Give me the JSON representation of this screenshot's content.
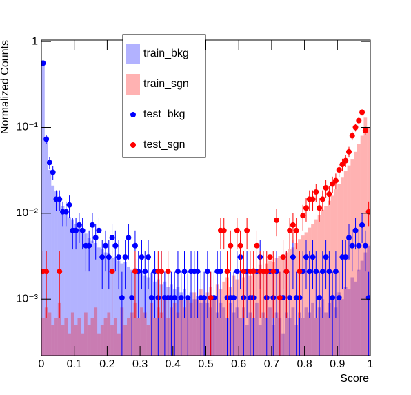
{
  "chart_data": {
    "type": "histogram",
    "xlabel": "Score",
    "ylabel": "Normalized Counts",
    "log_y": true,
    "grid": false,
    "legend_position": "top-left",
    "xlim": [
      0,
      1
    ],
    "ylim": [
      0.00022,
      1.04
    ],
    "xticks": [
      0,
      0.1,
      0.2,
      0.3,
      0.4,
      0.5,
      0.6,
      0.7,
      0.8,
      0.9,
      1
    ],
    "yticks": [
      {
        "value": 0.001,
        "label": "10⁻³"
      },
      {
        "value": 0.01,
        "label": "10⁻²"
      },
      {
        "value": 0.1,
        "label": "10⁻¹"
      },
      1
    ],
    "bins": [
      0,
      0.01,
      0.02,
      0.03,
      0.04,
      0.05,
      0.06,
      0.07,
      0.08,
      0.09,
      0.1,
      0.11,
      0.12,
      0.13,
      0.14,
      0.15,
      0.16,
      0.17,
      0.18,
      0.19,
      0.2,
      0.21,
      0.22,
      0.23,
      0.24,
      0.25,
      0.26,
      0.27,
      0.28,
      0.29,
      0.3,
      0.31,
      0.32,
      0.33,
      0.34,
      0.35,
      0.36,
      0.37,
      0.38,
      0.39,
      0.4,
      0.41,
      0.42,
      0.43,
      0.44,
      0.45,
      0.46,
      0.47,
      0.48,
      0.49,
      0.5,
      0.51,
      0.52,
      0.53,
      0.54,
      0.55,
      0.56,
      0.57,
      0.58,
      0.59,
      0.6,
      0.61,
      0.62,
      0.63,
      0.64,
      0.65,
      0.66,
      0.67,
      0.68,
      0.69,
      0.7,
      0.71,
      0.72,
      0.73,
      0.74,
      0.75,
      0.76,
      0.77,
      0.78,
      0.79,
      0.8,
      0.81,
      0.82,
      0.83,
      0.84,
      0.85,
      0.86,
      0.87,
      0.88,
      0.89,
      0.9,
      0.91,
      0.92,
      0.93,
      0.94,
      0.95,
      0.96,
      0.97,
      0.98,
      0.99,
      1
    ],
    "series": [
      {
        "name": "train_bkg",
        "style": "filled",
        "color": "#0000ff",
        "opacity": 0.3,
        "values": [
          0.6,
          0.07,
          0.032,
          0.021,
          0.018,
          0.014,
          0.012,
          0.01,
          0.009,
          0.0085,
          0.0075,
          0.007,
          0.0062,
          0.0058,
          0.0052,
          0.0048,
          0.0045,
          0.004,
          0.0038,
          0.0035,
          0.0034,
          0.003,
          0.0031,
          0.0028,
          0.0026,
          0.0027,
          0.0024,
          0.0022,
          0.0023,
          0.002,
          0.0021,
          0.0019,
          0.0018,
          0.002,
          0.0016,
          0.0017,
          0.0015,
          0.0016,
          0.0014,
          0.0015,
          0.0013,
          0.0014,
          0.0012,
          0.0013,
          0.0011,
          0.0012,
          0.001,
          0.0011,
          0.0009,
          0.001,
          0.0009,
          0.0008,
          0.001,
          0.0007,
          0.0009,
          0.0008,
          0.0006,
          0.0009,
          0.0007,
          0.0008,
          0.0006,
          0.0008,
          0.0005,
          0.0007,
          0.0006,
          0.0009,
          0.0005,
          0.0007,
          0.0006,
          0.0008,
          0.0005,
          0.0007,
          0.0006,
          0.0004,
          0.0007,
          0.0006,
          0.0008,
          0.0005,
          0.0007,
          0.0006,
          0.0008,
          0.0007,
          0.0009,
          0.0006,
          0.0008,
          0.001,
          0.0007,
          0.0009,
          0.0011,
          0.0008,
          0.0012,
          0.001,
          0.0014,
          0.0013,
          0.0018,
          0.0016,
          0.0022,
          0.0028,
          0.0035,
          0.0042
        ]
      },
      {
        "name": "train_sgn",
        "style": "filled",
        "color": "#ff0000",
        "opacity": 0.3,
        "values": [
          0.0006,
          0.0008,
          0.0007,
          0.0005,
          0.0006,
          0.0009,
          0.0005,
          0.0006,
          0.0004,
          0.0007,
          0.0005,
          0.0006,
          0.0004,
          0.0007,
          0.0005,
          0.0006,
          0.0008,
          0.0004,
          0.0005,
          0.0006,
          0.0007,
          0.0005,
          0.0006,
          0.0004,
          0.0008,
          0.0005,
          0.0006,
          0.0007,
          0.0009,
          0.0006,
          0.0008,
          0.0007,
          0.0005,
          0.0009,
          0.0006,
          0.0008,
          0.0007,
          0.001,
          0.0006,
          0.0008,
          0.0009,
          0.0007,
          0.001,
          0.0008,
          0.0011,
          0.0009,
          0.0012,
          0.001,
          0.0013,
          0.0011,
          0.0012,
          0.0014,
          0.0011,
          0.0015,
          0.0013,
          0.0016,
          0.0018,
          0.0014,
          0.0019,
          0.0017,
          0.002,
          0.0018,
          0.0021,
          0.0019,
          0.0023,
          0.0021,
          0.0025,
          0.0022,
          0.0026,
          0.0028,
          0.0027,
          0.003,
          0.0032,
          0.0029,
          0.0035,
          0.0038,
          0.004,
          0.0045,
          0.005,
          0.0055,
          0.006,
          0.0068,
          0.0075,
          0.0085,
          0.0095,
          0.011,
          0.012,
          0.014,
          0.016,
          0.019,
          0.022,
          0.026,
          0.031,
          0.036,
          0.043,
          0.052,
          0.064,
          0.08,
          0.13,
          0.1
        ]
      },
      {
        "name": "test_bkg",
        "style": "points",
        "color": "#0000ff",
        "values": [
          0.56,
          0.073,
          0.039,
          0.03,
          0.0146,
          0.0146,
          0.0104,
          0.0104,
          0.0125,
          0.0063,
          0.0063,
          0.0073,
          0.0063,
          0.0042,
          0.0042,
          0.0073,
          0.0052,
          0.0063,
          0.0031,
          0.0042,
          0.0031,
          0.0052,
          0.0042,
          0.0031,
          0.00104,
          0.0031,
          0.0052,
          0.00104,
          0.0042,
          0.0021,
          0.0031,
          0.0021,
          0.0031,
          0.00104,
          0.0021,
          0.00104,
          0.0021,
          0.00104,
          0.00104,
          0.00104,
          0.00104,
          0.0021,
          0.00104,
          0.0021,
          0.00104,
          0.0021,
          0.0021,
          0.0021,
          0.00104,
          0.00104,
          0.0021,
          0.00104,
          0.00104,
          0.0021,
          0.0021,
          null,
          0.00104,
          0.00104,
          0.00104,
          0.0021,
          0.0031,
          0.00104,
          0.0021,
          0.00104,
          0.00104,
          0.0021,
          0.0031,
          0.0021,
          0.00104,
          0.0021,
          0.00104,
          0.0021,
          0.00104,
          0.00104,
          0.0021,
          0.00104,
          0.0031,
          0.00104,
          0.00104,
          0.0021,
          0.0031,
          0.0021,
          0.0031,
          0.0021,
          0.00104,
          0.0021,
          0.0031,
          0.0021,
          0.00104,
          0.0021,
          0.00104,
          0.0031,
          0.0031,
          0.0052,
          0.0042,
          0.0063,
          0.0042,
          0.0073,
          0.0042,
          0.00104
        ],
        "errors": [
          0.024,
          0.0087,
          0.0064,
          0.0056,
          0.0039,
          0.0039,
          0.0033,
          0.0033,
          0.0036,
          0.0025,
          0.0025,
          0.0028,
          0.0025,
          0.0021,
          0.0021,
          0.0028,
          0.0023,
          0.0025,
          0.0018,
          0.0021,
          0.0018,
          0.0023,
          0.0021,
          0.0018,
          0.00104,
          0.0018,
          0.0023,
          0.00104,
          0.0021,
          0.0015,
          0.0018,
          0.0015,
          0.0018,
          0.00104,
          0.0015,
          0.00104,
          0.0015,
          0.00104,
          0.00104,
          0.00104,
          0.00104,
          0.0015,
          0.00104,
          0.0015,
          0.00104,
          0.0015,
          0.0015,
          0.0015,
          0.00104,
          0.00104,
          0.0015,
          0.00104,
          0.00104,
          0.0015,
          0.0015,
          null,
          0.00104,
          0.00104,
          0.00104,
          0.0015,
          0.0018,
          0.00104,
          0.0015,
          0.00104,
          0.00104,
          0.0015,
          0.0018,
          0.0015,
          0.00104,
          0.0015,
          0.00104,
          0.0015,
          0.00104,
          0.00104,
          0.0015,
          0.00104,
          0.0018,
          0.00104,
          0.00104,
          0.0015,
          0.0018,
          0.0015,
          0.0018,
          0.0015,
          0.00104,
          0.0015,
          0.0018,
          0.0015,
          0.00104,
          0.0015,
          0.00104,
          0.0018,
          0.0018,
          0.0023,
          0.0021,
          0.0025,
          0.0021,
          0.0028,
          0.0021,
          0.00104
        ]
      },
      {
        "name": "test_sgn",
        "style": "points",
        "color": "#ff0000",
        "values": [
          0.0021,
          0.0021,
          null,
          null,
          null,
          0.0021,
          null,
          null,
          null,
          null,
          null,
          null,
          null,
          null,
          null,
          null,
          null,
          null,
          null,
          null,
          null,
          0.0021,
          null,
          null,
          null,
          null,
          null,
          null,
          0.0021,
          null,
          null,
          null,
          null,
          null,
          null,
          0.0021,
          0.0021,
          null,
          0.0021,
          null,
          null,
          null,
          null,
          null,
          null,
          null,
          null,
          null,
          null,
          null,
          null,
          0.00104,
          null,
          null,
          0.0063,
          0.0063,
          0.0021,
          0.0042,
          null,
          0.0063,
          0.0042,
          0.0021,
          0.0063,
          0.0021,
          0.0021,
          0.0042,
          0.0021,
          0.0021,
          0.0021,
          0.0031,
          0.0021,
          0.0083,
          0.00104,
          0.0031,
          0.0021,
          0.0063,
          0.0073,
          0.0063,
          0.0021,
          0.0094,
          0.0115,
          0.0146,
          0.0146,
          0.0177,
          0.0115,
          0.0146,
          0.0198,
          0.0167,
          0.0219,
          0.024,
          0.032,
          0.037,
          0.041,
          0.052,
          0.08,
          0.1,
          0.12,
          0.15,
          0.092,
          0.0104
        ],
        "errors": [
          0.0015,
          0.0015,
          null,
          null,
          null,
          0.0015,
          null,
          null,
          null,
          null,
          null,
          null,
          null,
          null,
          null,
          null,
          null,
          null,
          null,
          null,
          null,
          0.0015,
          null,
          null,
          null,
          null,
          null,
          null,
          0.0015,
          null,
          null,
          null,
          null,
          null,
          null,
          0.0015,
          0.0015,
          null,
          0.0015,
          null,
          null,
          null,
          null,
          null,
          null,
          null,
          null,
          null,
          null,
          null,
          null,
          0.00104,
          null,
          null,
          0.0025,
          0.0025,
          0.0015,
          0.0021,
          null,
          0.0025,
          0.0021,
          0.0015,
          0.0025,
          0.0015,
          0.0015,
          0.0021,
          0.0015,
          0.0015,
          0.0015,
          0.0018,
          0.0015,
          0.0029,
          0.00104,
          0.0018,
          0.0015,
          0.0025,
          0.0028,
          0.0025,
          0.0015,
          0.0031,
          0.0035,
          0.0039,
          0.0039,
          0.0043,
          0.0035,
          0.0039,
          0.0045,
          0.0042,
          0.0048,
          0.005,
          0.0058,
          0.0062,
          0.0065,
          0.0074,
          0.0091,
          0.0102,
          0.0112,
          0.0125,
          0.0098,
          0.0033
        ]
      }
    ]
  }
}
